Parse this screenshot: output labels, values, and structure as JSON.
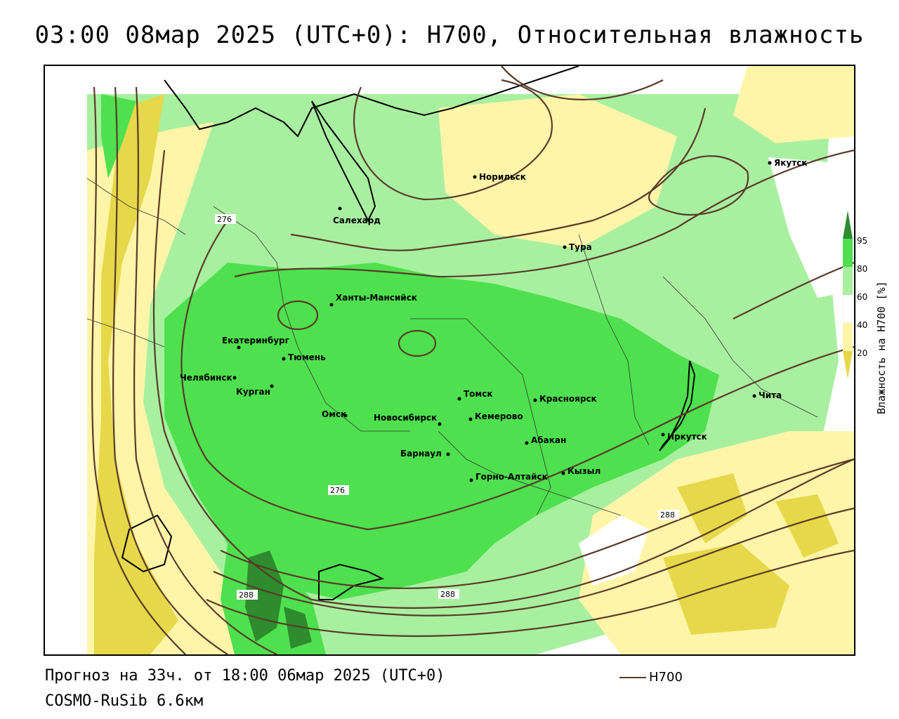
{
  "title": "03:00 08мар 2025 (UTC+0): H700, Относительная влажность",
  "footer": {
    "forecast": "Прогноз на 33ч. от 18:00 06мар 2025 (UTC+0)",
    "model": "COSMO-RuSib 6.6км"
  },
  "line_legend": {
    "label": "H700",
    "color": "#5a3a2a"
  },
  "legend": {
    "title": "Влажность на H700 [%]",
    "ticks": [
      "95",
      "80",
      "60",
      "40",
      "20"
    ],
    "colors": {
      "very_high": "#2e8b2e",
      "high": "#4fe04f",
      "mid_high": "#a8f0a0",
      "mid": "#ffffff",
      "low": "#fff5a8",
      "very_low": "#e6d84a",
      "land_border": "#333333",
      "contour": "#5a3a2a"
    }
  },
  "cities": [
    {
      "name": "Норильск"
    },
    {
      "name": "Якутск"
    },
    {
      "name": "Салехард"
    },
    {
      "name": "Тура"
    },
    {
      "name": "Ханты-Мансийск"
    },
    {
      "name": "Екатеринбург"
    },
    {
      "name": "Тюмень"
    },
    {
      "name": "Челябинск"
    },
    {
      "name": "Курган"
    },
    {
      "name": "Омск"
    },
    {
      "name": "Новосибирск"
    },
    {
      "name": "Томск"
    },
    {
      "name": "Кемерово"
    },
    {
      "name": "Красноярск"
    },
    {
      "name": "Барнаул"
    },
    {
      "name": "Абакан"
    },
    {
      "name": "Горно-Алтайск"
    },
    {
      "name": "Кызыл"
    },
    {
      "name": "Иркутск"
    },
    {
      "name": "Чита"
    }
  ],
  "contour_labels": [
    "276",
    "276",
    "288",
    "288",
    "288"
  ]
}
